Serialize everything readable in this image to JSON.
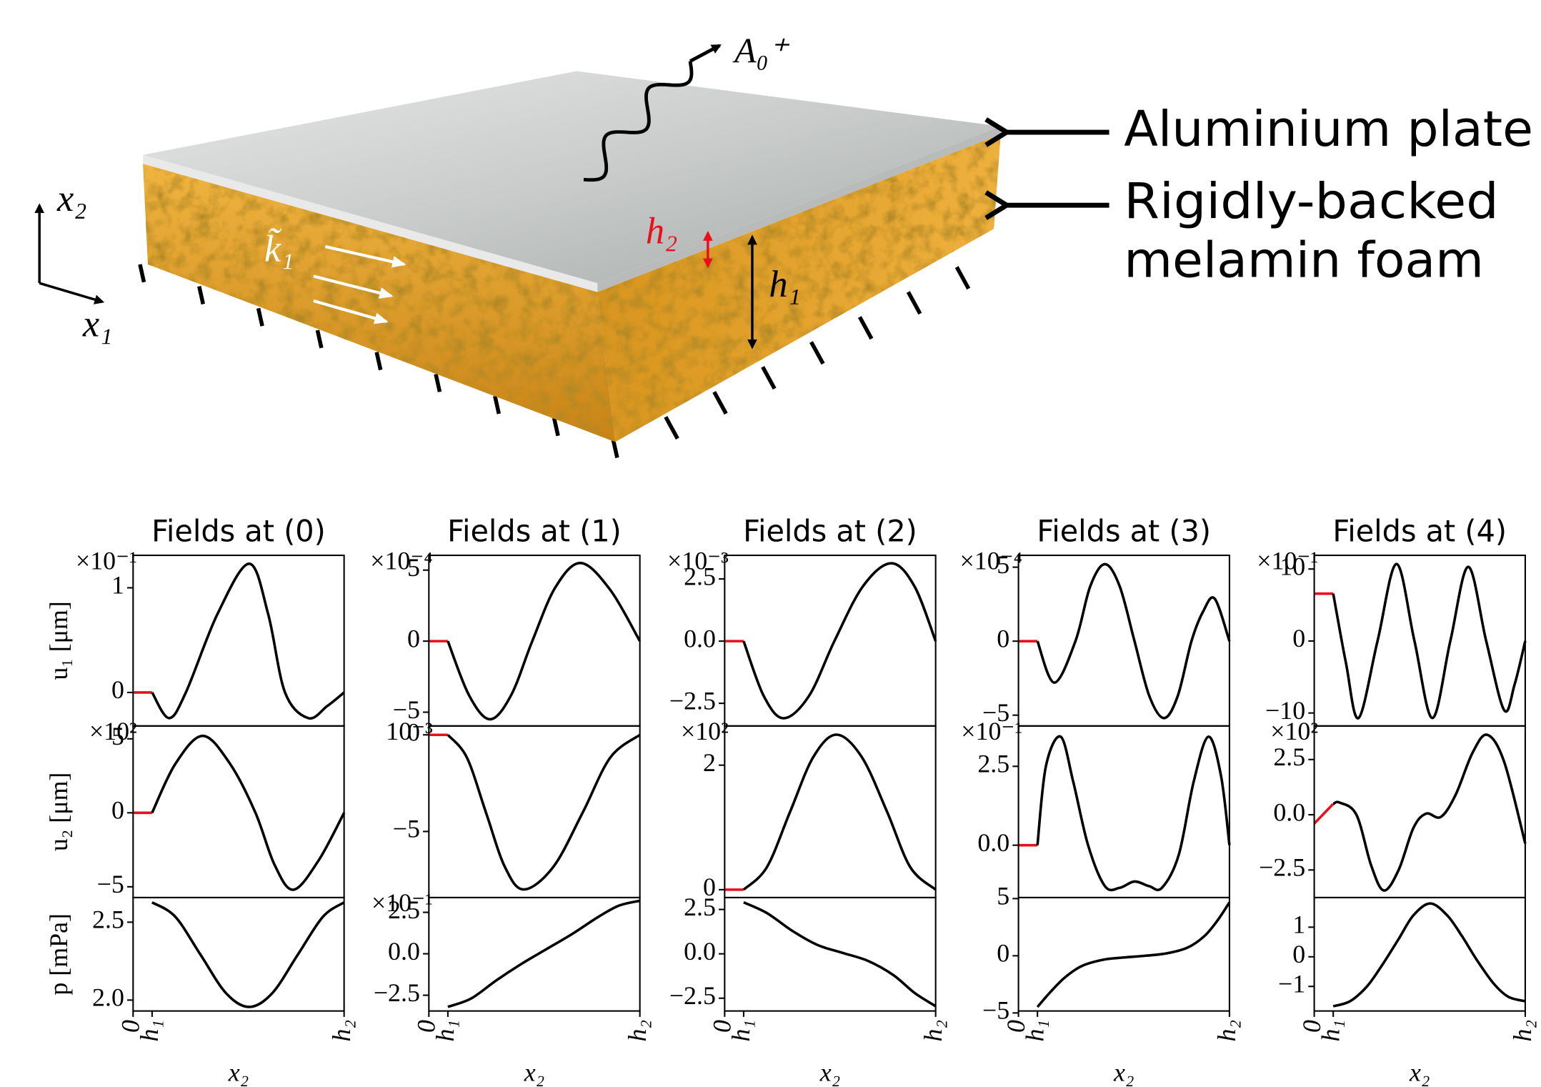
{
  "illustration": {
    "wave": "A₀⁺",
    "plate_label": "Aluminium plate",
    "foam_label_1": "Rigidly-backed",
    "foam_label_2": "melamin foam",
    "axis_x2": "x₂",
    "axis_x1": "x₁",
    "wavenumber": "k̃₁",
    "h1": "h₁",
    "h2": "h₂"
  },
  "chart_data": [
    {
      "type": "line",
      "title": "Fields at (0)",
      "ylabel": "u₁ [μm]",
      "offset_text": "×10⁻¹",
      "xlim": [
        0,
        1
      ],
      "ylim": [
        -0.32,
        1.31
      ],
      "yticks": [
        0,
        1
      ],
      "x": [
        0,
        0.09,
        0.17,
        0.25,
        0.4,
        0.55,
        0.64,
        0.72,
        0.83,
        0.92,
        1.0
      ],
      "series": [
        {
          "color": "#e8101a",
          "values": [
            0,
            0,
            null,
            null,
            null,
            null,
            null,
            null,
            null,
            null,
            null
          ]
        },
        {
          "color": "#000000",
          "values": [
            null,
            0,
            -0.245,
            0,
            0.75,
            1.23,
            0.75,
            0,
            -0.245,
            -0.13,
            0
          ]
        }
      ]
    },
    {
      "type": "line",
      "title": "Fields at (1)",
      "offset_text": "×10⁻⁴",
      "xlim": [
        0,
        1
      ],
      "ylim": [
        -5.97,
        6.04
      ],
      "yticks": [
        {
          "value": -5,
          "label": "−5"
        },
        0,
        5
      ],
      "x": [
        0,
        0.09,
        0.19,
        0.29,
        0.39,
        0.49,
        0.6,
        0.72,
        0.86,
        1.0
      ],
      "series": [
        {
          "color": "#e8101a",
          "values": [
            0,
            0,
            null,
            null,
            null,
            null,
            null,
            null,
            null,
            null
          ]
        },
        {
          "color": "#000000",
          "values": [
            null,
            0,
            -3.8,
            -5.5,
            -3.8,
            0,
            3.8,
            5.5,
            3.6,
            0
          ]
        }
      ]
    },
    {
      "type": "line",
      "title": "Fields at (2)",
      "offset_text": "×10⁻³",
      "xlim": [
        0,
        1
      ],
      "ylim": [
        -3.41,
        3.45
      ],
      "yticks": [
        {
          "value": -2.5,
          "label": "−2.5"
        },
        {
          "value": 0,
          "label": "0.0"
        },
        2.5
      ],
      "x": [
        0,
        0.09,
        0.185,
        0.28,
        0.4,
        0.52,
        0.655,
        0.79,
        0.9,
        1.0
      ],
      "series": [
        {
          "color": "#e8101a",
          "values": [
            0,
            0,
            null,
            null,
            null,
            null,
            null,
            null,
            null,
            null
          ]
        },
        {
          "color": "#000000",
          "values": [
            null,
            0,
            -2.2,
            -3.1,
            -2.2,
            0,
            2.2,
            3.13,
            2.2,
            0
          ]
        }
      ]
    },
    {
      "type": "line",
      "title": "Fields at (3)",
      "offset_text": "×10⁻⁴",
      "xlim": [
        0,
        1
      ],
      "ylim": [
        -5.73,
        5.8
      ],
      "yticks": [
        {
          "value": -5,
          "label": "−5"
        },
        0,
        5
      ],
      "x": [
        0,
        0.09,
        0.17,
        0.27,
        0.34,
        0.41,
        0.48,
        0.55,
        0.62,
        0.69,
        0.755,
        0.82,
        0.875,
        0.93,
        1.0
      ],
      "series": [
        {
          "color": "#e8101a",
          "values": [
            0,
            0,
            null,
            null,
            null,
            null,
            null,
            null,
            null,
            null,
            null,
            null,
            null,
            null,
            null
          ]
        },
        {
          "color": "#000000",
          "values": [
            null,
            0,
            -2.8,
            0,
            3.7,
            5.2,
            3.7,
            0,
            -3.7,
            -5.2,
            -3.7,
            0,
            2.0,
            2.87,
            0
          ]
        }
      ]
    },
    {
      "type": "line",
      "title": "Fields at (4)",
      "offset_text": "×10⁻¹",
      "xlim": [
        0,
        1
      ],
      "ylim": [
        -11.8,
        11.9
      ],
      "yticks": [
        {
          "value": -10,
          "label": "−10"
        },
        0,
        10
      ],
      "x": [
        0,
        0.09,
        0.15,
        0.21,
        0.3,
        0.39,
        0.475,
        0.56,
        0.645,
        0.73,
        0.815,
        0.9,
        0.95,
        1.0
      ],
      "series": [
        {
          "color": "#e8101a",
          "values": [
            6.58,
            6.58,
            null,
            null,
            null,
            null,
            null,
            null,
            null,
            null,
            null,
            null,
            null,
            null
          ]
        },
        {
          "color": "#000000",
          "values": [
            null,
            6.58,
            -3,
            -10.7,
            0,
            10.7,
            0,
            -10.7,
            0,
            10.3,
            0,
            -9.6,
            -6,
            0
          ]
        }
      ]
    },
    {
      "type": "line",
      "ylabel": "u₂ [μm]",
      "offset_text": "×10²",
      "xlim": [
        0,
        1
      ],
      "ylim": [
        -5.73,
        5.87
      ],
      "yticks": [
        {
          "value": -5,
          "label": "−5"
        },
        0,
        5
      ],
      "x": [
        0,
        0.09,
        0.2,
        0.33,
        0.46,
        0.58,
        0.67,
        0.76,
        0.88,
        1.0
      ],
      "series": [
        {
          "color": "#e8101a",
          "values": [
            0,
            0,
            null,
            null,
            null,
            null,
            null,
            null,
            null,
            null
          ]
        },
        {
          "color": "#000000",
          "values": [
            null,
            0,
            3.3,
            5.2,
            3.3,
            0,
            -3.5,
            -5.2,
            -3.2,
            0
          ]
        }
      ]
    },
    {
      "type": "line",
      "offset_text": "10⁻³",
      "xlim": [
        0,
        1
      ],
      "ylim": [
        -8.42,
        0.46
      ],
      "yticks": [
        {
          "value": -5,
          "label": "−5"
        },
        0
      ],
      "x": [
        0,
        0.09,
        0.18,
        0.27,
        0.36,
        0.45,
        0.59,
        0.73,
        0.86,
        1.0
      ],
      "series": [
        {
          "color": "#e8101a",
          "values": [
            0,
            0,
            null,
            null,
            null,
            null,
            null,
            null,
            null,
            null
          ]
        },
        {
          "color": "#000000",
          "values": [
            null,
            0,
            -1.17,
            -4,
            -6.83,
            -8,
            -6.83,
            -4,
            -1.17,
            0
          ]
        }
      ]
    },
    {
      "type": "line",
      "offset_text": "×10²",
      "xlim": [
        0,
        1
      ],
      "ylim": [
        -0.127,
        2.63
      ],
      "yticks": [
        0,
        2
      ],
      "x": [
        0,
        0.09,
        0.2,
        0.31,
        0.42,
        0.53,
        0.65,
        0.77,
        0.88,
        1.0
      ],
      "series": [
        {
          "color": "#e8101a",
          "values": [
            0,
            0,
            null,
            null,
            null,
            null,
            null,
            null,
            null,
            null
          ]
        },
        {
          "color": "#000000",
          "values": [
            null,
            0,
            0.36,
            1.25,
            2.13,
            2.49,
            2.13,
            1.25,
            0.36,
            0
          ]
        }
      ]
    },
    {
      "type": "line",
      "offset_text": "×10⁻¹",
      "xlim": [
        0,
        1
      ],
      "ylim": [
        -1.66,
        3.78
      ],
      "yticks": [
        {
          "value": 0,
          "label": "0.0"
        },
        2.5
      ],
      "x": [
        0,
        0.09,
        0.13,
        0.2,
        0.26,
        0.33,
        0.41,
        0.48,
        0.55,
        0.62,
        0.68,
        0.76,
        0.83,
        0.9,
        0.96,
        1.0
      ],
      "series": [
        {
          "color": "#e8101a",
          "values": [
            0,
            0,
            null,
            null,
            null,
            null,
            null,
            null,
            null,
            null,
            null,
            null,
            null,
            null,
            null,
            null
          ]
        },
        {
          "color": "#000000",
          "values": [
            null,
            0,
            2.5,
            3.44,
            2.0,
            0,
            -1.3,
            -1.35,
            -1.15,
            -1.3,
            -1.35,
            -0.3,
            2.0,
            3.44,
            2.2,
            0
          ]
        }
      ]
    },
    {
      "type": "line",
      "offset_text": "×10²",
      "xlim": [
        0,
        1
      ],
      "ylim": [
        -3.75,
        4.02
      ],
      "yticks": [
        {
          "value": -2.5,
          "label": "−2.5"
        },
        {
          "value": 0,
          "label": "0.0"
        },
        2.5
      ],
      "x": [
        0,
        0.09,
        0.12,
        0.2,
        0.27,
        0.33,
        0.4,
        0.47,
        0.53,
        0.6,
        0.67,
        0.75,
        0.82,
        0.9,
        1.0
      ],
      "series": [
        {
          "color": "#e8101a",
          "values": [
            -0.4,
            0.49,
            null,
            null,
            null,
            null,
            null,
            null,
            null,
            null,
            null,
            null,
            null,
            null,
            null
          ]
        },
        {
          "color": "#000000",
          "values": [
            null,
            0.49,
            0.55,
            0,
            -2.3,
            -3.43,
            -2.5,
            -0.6,
            0.05,
            -0.1,
            0.9,
            2.8,
            3.62,
            2.4,
            -1.3
          ]
        }
      ]
    },
    {
      "type": "line",
      "ylabel": "p [mPa]",
      "xlabel": "x₂",
      "xlim": [
        0,
        1
      ],
      "ylim": [
        1.93,
        2.658
      ],
      "yticks": [
        {
          "value": 2.0,
          "label": "2.0"
        },
        2.5
      ],
      "xticks": [
        0,
        {
          "value": 0.09,
          "label": "h₁"
        },
        {
          "value": 1,
          "label": "h₂"
        }
      ],
      "x": [
        0.09,
        0.2,
        0.32,
        0.44,
        0.55,
        0.66,
        0.78,
        0.9,
        1.0
      ],
      "series": [
        {
          "color": "#000000",
          "values": [
            2.627,
            2.535,
            2.29,
            2.045,
            1.956,
            2.045,
            2.29,
            2.535,
            2.627
          ]
        }
      ]
    },
    {
      "type": "line",
      "offset_text": "×10⁻¹",
      "xlabel": "x₂",
      "xlim": [
        0,
        1
      ],
      "ylim": [
        -3.45,
        3.39
      ],
      "yticks": [
        {
          "value": -2.5,
          "label": "−2.5"
        },
        {
          "value": 0,
          "label": "0.0"
        },
        2.5
      ],
      "xticks": [
        0,
        {
          "value": 0.09,
          "label": "h₁"
        },
        {
          "value": 1,
          "label": "h₂"
        }
      ],
      "x": [
        0.09,
        0.2,
        0.32,
        0.44,
        0.56,
        0.68,
        0.8,
        0.9,
        1.0
      ],
      "series": [
        {
          "color": "#000000",
          "values": [
            -3.2,
            -2.7,
            -1.6,
            -0.6,
            0.3,
            1.2,
            2.2,
            2.9,
            3.2
          ]
        }
      ]
    },
    {
      "type": "line",
      "xlabel": "x₂",
      "xlim": [
        0,
        1
      ],
      "ylim": [
        -3.22,
        3.17
      ],
      "yticks": [
        {
          "value": -2.5,
          "label": "−2.5"
        },
        {
          "value": 0,
          "label": "0.0"
        },
        2.5
      ],
      "xticks": [
        0,
        {
          "value": 0.09,
          "label": "h₁"
        },
        {
          "value": 1,
          "label": "h₂"
        }
      ],
      "x": [
        0.09,
        0.2,
        0.32,
        0.44,
        0.56,
        0.68,
        0.8,
        0.9,
        1.0
      ],
      "series": [
        {
          "color": "#000000",
          "values": [
            2.9,
            2.3,
            1.3,
            0.5,
            0.05,
            -0.4,
            -1.2,
            -2.2,
            -2.95
          ]
        }
      ]
    },
    {
      "type": "line",
      "xlabel": "x₂",
      "xlim": [
        0,
        1
      ],
      "ylim": [
        -4.83,
        5.09
      ],
      "yticks": [
        {
          "value": -5,
          "label": "−5"
        },
        0,
        5
      ],
      "xticks": [
        0,
        {
          "value": 0.09,
          "label": "h₁"
        },
        {
          "value": 1,
          "label": "h₂"
        }
      ],
      "x": [
        0.09,
        0.15,
        0.22,
        0.3,
        0.4,
        0.5,
        0.6,
        0.7,
        0.8,
        0.88,
        0.94,
        1.0
      ],
      "series": [
        {
          "color": "#000000",
          "values": [
            -4.48,
            -3.2,
            -1.9,
            -0.9,
            -0.35,
            -0.15,
            0,
            0.2,
            0.7,
            1.7,
            3.0,
            4.66
          ]
        }
      ]
    },
    {
      "type": "line",
      "xlabel": "x₂",
      "xlim": [
        0,
        1
      ],
      "ylim": [
        -1.83,
        2.0
      ],
      "yticks": [
        {
          "value": -1,
          "label": "−1"
        },
        0,
        1
      ],
      "xticks": [
        0,
        {
          "value": 0.09,
          "label": "h₁"
        },
        {
          "value": 1,
          "label": "h₂"
        }
      ],
      "x": [
        0.09,
        0.17,
        0.25,
        0.32,
        0.4,
        0.47,
        0.55,
        0.63,
        0.7,
        0.77,
        0.85,
        0.92,
        1.0
      ],
      "series": [
        {
          "color": "#000000",
          "values": [
            -1.67,
            -1.5,
            -1.0,
            -0.3,
            0.6,
            1.4,
            1.8,
            1.4,
            0.7,
            -0.1,
            -0.9,
            -1.35,
            -1.5
          ]
        }
      ]
    }
  ]
}
